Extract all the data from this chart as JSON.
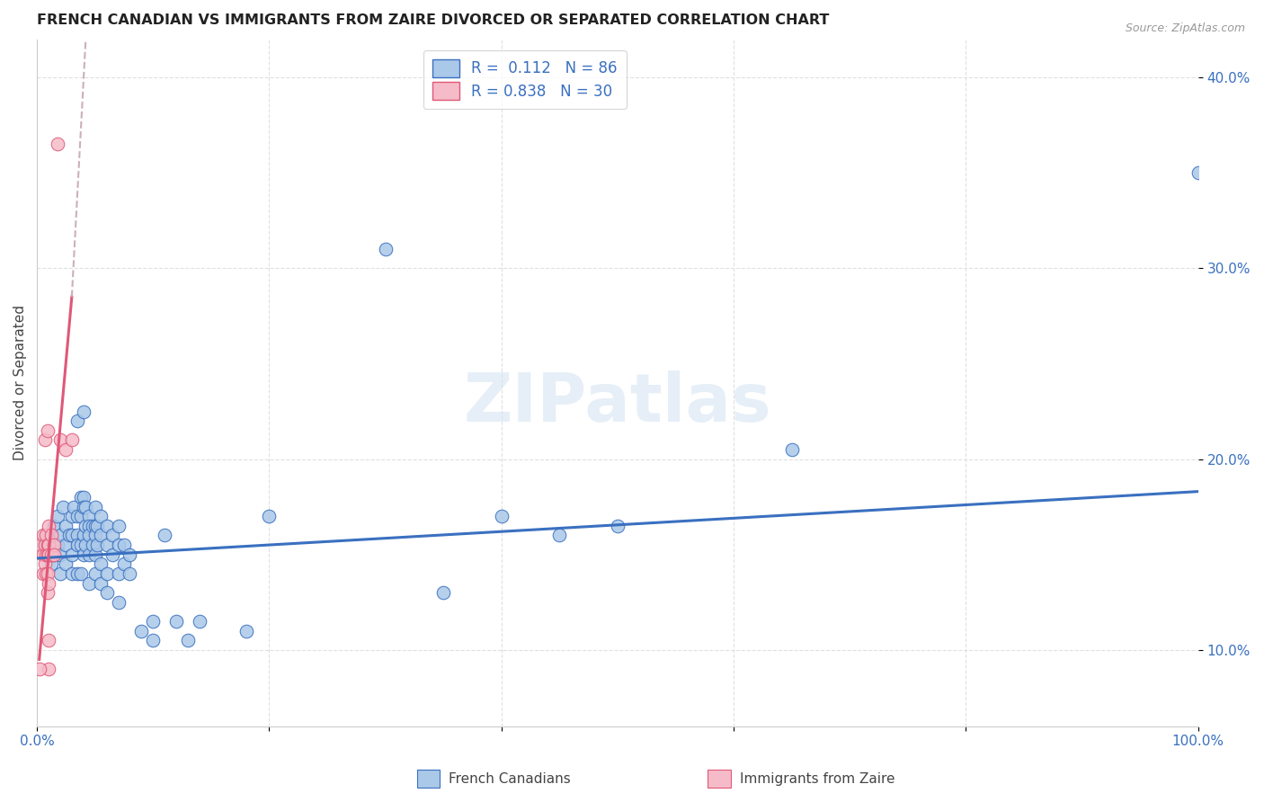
{
  "title": "FRENCH CANADIAN VS IMMIGRANTS FROM ZAIRE DIVORCED OR SEPARATED CORRELATION CHART",
  "source": "Source: ZipAtlas.com",
  "ylabel": "Divorced or Separated",
  "watermark": "ZIPatlas",
  "blue_R": "0.112",
  "blue_N": "86",
  "pink_R": "0.838",
  "pink_N": "30",
  "legend_label_blue": "French Canadians",
  "legend_label_pink": "Immigrants from Zaire",
  "blue_color": "#aac8e8",
  "pink_color": "#f5bbc8",
  "blue_line_color": "#3a70c0",
  "pink_line_color": "#e05878",
  "blue_scatter": [
    [
      0.5,
      15.5
    ],
    [
      0.8,
      16.0
    ],
    [
      1.0,
      15.8
    ],
    [
      1.2,
      14.5
    ],
    [
      1.5,
      16.5
    ],
    [
      1.5,
      15.0
    ],
    [
      1.8,
      17.0
    ],
    [
      1.8,
      15.5
    ],
    [
      2.0,
      16.0
    ],
    [
      2.0,
      15.0
    ],
    [
      2.0,
      14.0
    ],
    [
      2.2,
      17.5
    ],
    [
      2.5,
      16.5
    ],
    [
      2.5,
      15.5
    ],
    [
      2.5,
      14.5
    ],
    [
      2.8,
      16.0
    ],
    [
      3.0,
      17.0
    ],
    [
      3.0,
      16.0
    ],
    [
      3.0,
      15.0
    ],
    [
      3.0,
      14.0
    ],
    [
      3.2,
      17.5
    ],
    [
      3.5,
      22.0
    ],
    [
      3.5,
      17.0
    ],
    [
      3.5,
      16.0
    ],
    [
      3.5,
      15.5
    ],
    [
      3.5,
      14.0
    ],
    [
      3.8,
      18.0
    ],
    [
      3.8,
      17.0
    ],
    [
      3.8,
      15.5
    ],
    [
      3.8,
      14.0
    ],
    [
      4.0,
      22.5
    ],
    [
      4.0,
      18.0
    ],
    [
      4.0,
      17.5
    ],
    [
      4.0,
      16.0
    ],
    [
      4.0,
      15.0
    ],
    [
      4.2,
      17.5
    ],
    [
      4.2,
      16.5
    ],
    [
      4.2,
      15.5
    ],
    [
      4.5,
      17.0
    ],
    [
      4.5,
      16.5
    ],
    [
      4.5,
      16.0
    ],
    [
      4.5,
      15.0
    ],
    [
      4.5,
      13.5
    ],
    [
      4.8,
      16.5
    ],
    [
      4.8,
      15.5
    ],
    [
      5.0,
      17.5
    ],
    [
      5.0,
      16.5
    ],
    [
      5.0,
      16.0
    ],
    [
      5.0,
      15.0
    ],
    [
      5.0,
      14.0
    ],
    [
      5.2,
      16.5
    ],
    [
      5.2,
      15.5
    ],
    [
      5.5,
      17.0
    ],
    [
      5.5,
      16.0
    ],
    [
      5.5,
      14.5
    ],
    [
      5.5,
      13.5
    ],
    [
      6.0,
      16.5
    ],
    [
      6.0,
      15.5
    ],
    [
      6.0,
      14.0
    ],
    [
      6.0,
      13.0
    ],
    [
      6.5,
      16.0
    ],
    [
      6.5,
      15.0
    ],
    [
      7.0,
      16.5
    ],
    [
      7.0,
      15.5
    ],
    [
      7.0,
      14.0
    ],
    [
      7.0,
      12.5
    ],
    [
      7.5,
      15.5
    ],
    [
      7.5,
      14.5
    ],
    [
      8.0,
      15.0
    ],
    [
      8.0,
      14.0
    ],
    [
      9.0,
      11.0
    ],
    [
      10.0,
      11.5
    ],
    [
      10.0,
      10.5
    ],
    [
      11.0,
      16.0
    ],
    [
      12.0,
      11.5
    ],
    [
      13.0,
      10.5
    ],
    [
      14.0,
      11.5
    ],
    [
      18.0,
      11.0
    ],
    [
      20.0,
      17.0
    ],
    [
      30.0,
      31.0
    ],
    [
      35.0,
      13.0
    ],
    [
      40.0,
      17.0
    ],
    [
      45.0,
      16.0
    ],
    [
      50.0,
      16.5
    ],
    [
      65.0,
      20.5
    ],
    [
      100.0,
      35.0
    ]
  ],
  "pink_scatter": [
    [
      0.3,
      15.5
    ],
    [
      0.5,
      16.0
    ],
    [
      0.5,
      15.0
    ],
    [
      0.5,
      14.0
    ],
    [
      0.7,
      21.0
    ],
    [
      0.7,
      15.5
    ],
    [
      0.7,
      14.5
    ],
    [
      0.8,
      16.0
    ],
    [
      0.8,
      15.0
    ],
    [
      0.8,
      14.0
    ],
    [
      0.9,
      21.5
    ],
    [
      0.9,
      15.5
    ],
    [
      0.9,
      15.0
    ],
    [
      0.9,
      14.0
    ],
    [
      0.9,
      13.0
    ],
    [
      1.0,
      16.5
    ],
    [
      1.0,
      15.5
    ],
    [
      1.0,
      15.0
    ],
    [
      1.0,
      13.5
    ],
    [
      1.0,
      10.5
    ],
    [
      1.0,
      9.0
    ],
    [
      1.2,
      16.0
    ],
    [
      1.2,
      15.0
    ],
    [
      1.5,
      15.5
    ],
    [
      1.5,
      15.0
    ],
    [
      1.8,
      36.5
    ],
    [
      2.0,
      21.0
    ],
    [
      2.5,
      20.5
    ],
    [
      3.0,
      21.0
    ],
    [
      0.2,
      9.0
    ]
  ],
  "blue_line": [
    0.0,
    14.8,
    100.0,
    18.3
  ],
  "pink_line_solid": [
    0.2,
    9.5,
    3.0,
    28.5
  ],
  "pink_line_dashed": [
    3.0,
    28.5,
    4.2,
    42.0
  ],
  "xlim": [
    0,
    100
  ],
  "ylim": [
    6.0,
    42.0
  ],
  "yticks": [
    10,
    20,
    30,
    40
  ],
  "ytick_labels": [
    "10.0%",
    "20.0%",
    "30.0%",
    "40.0%"
  ],
  "xticks": [
    0,
    20,
    40,
    60,
    80,
    100
  ],
  "xtick_labels": [
    "0.0%",
    "",
    "",
    "",
    "",
    "100.0%"
  ],
  "background_color": "#ffffff",
  "grid_color": "#e0e0e0"
}
